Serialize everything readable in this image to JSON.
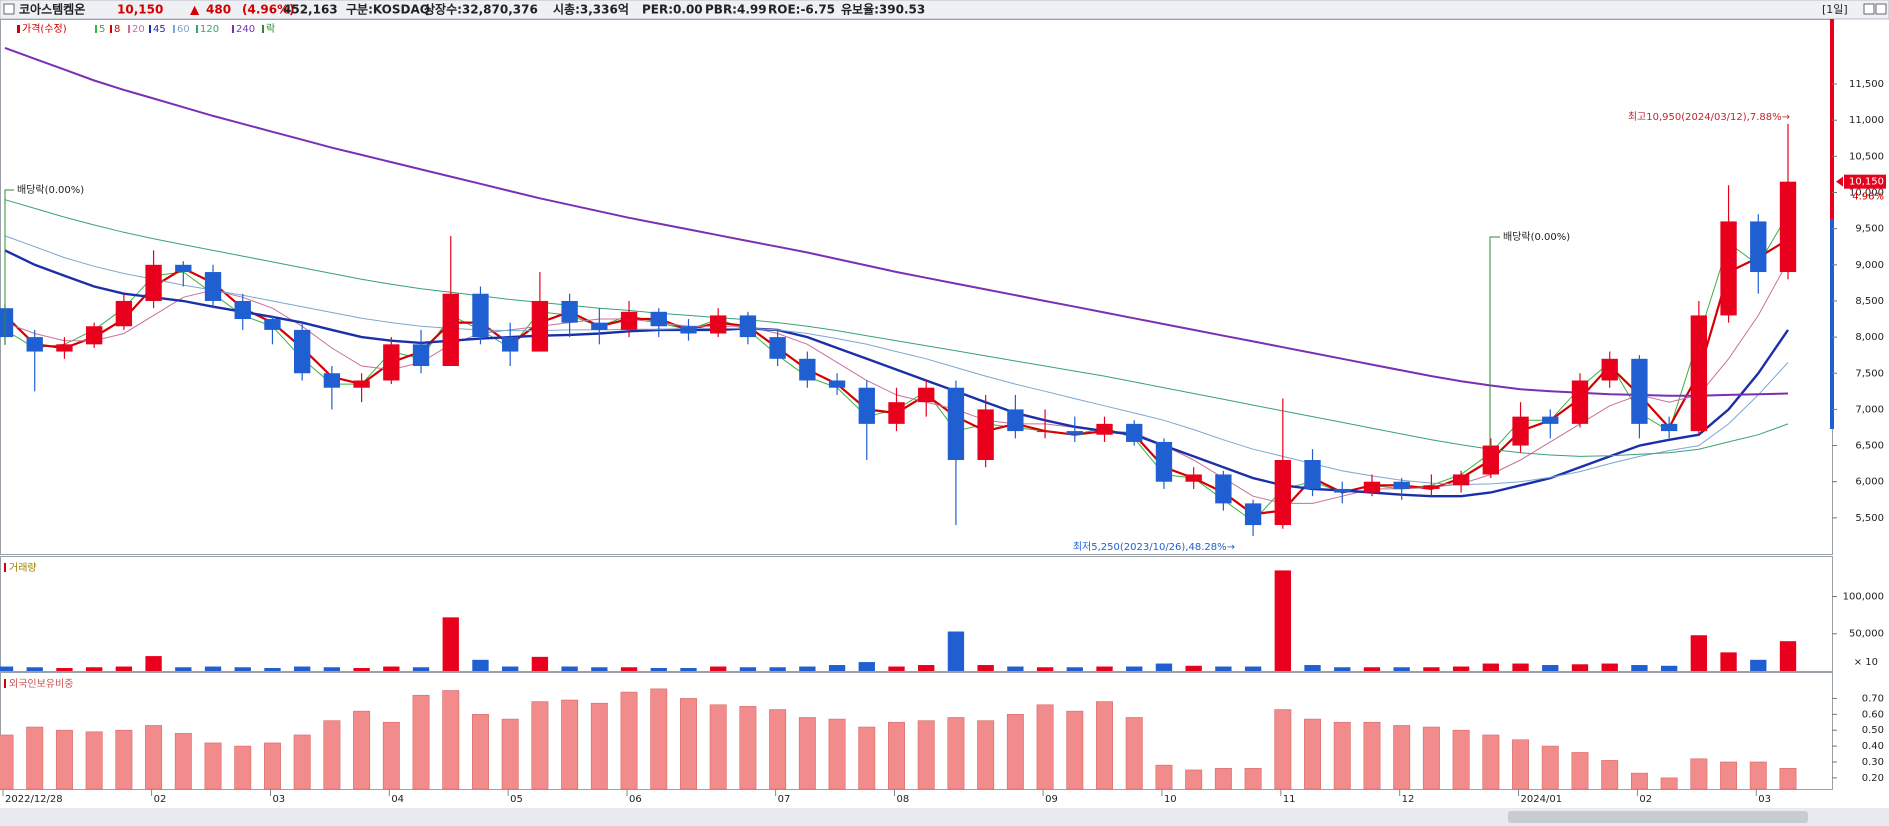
{
  "header": {
    "name": "코아스템켐온",
    "price": "10,150",
    "arrow": "▲",
    "change": "480",
    "change_pct": "(4.96%)",
    "volume": "452,163",
    "market": "구분:KOSDAQ",
    "shares": "상장수:32,870,376",
    "cap": "시총:3,336억",
    "per": "PER:0.00",
    "pbr": "PBR:4.99",
    "roe": "ROE:-6.75",
    "reserve": "유보율:390.53",
    "period": "[1일]"
  },
  "chart_data": [
    {
      "type": "candlestick",
      "legend_title": "가격(수정)",
      "up_color": "#e8001c",
      "down_color": "#1f5fd1",
      "categories": [
        "2022/12/28",
        null,
        null,
        null,
        null,
        "02",
        null,
        null,
        null,
        "03",
        null,
        null,
        null,
        "04",
        null,
        null,
        null,
        "05",
        null,
        null,
        null,
        "06",
        null,
        null,
        null,
        null,
        "07",
        null,
        null,
        null,
        "08",
        null,
        null,
        null,
        null,
        "09",
        null,
        null,
        null,
        "10",
        null,
        null,
        null,
        "11",
        null,
        null,
        null,
        "12",
        null,
        null,
        null,
        "2024/01",
        null,
        null,
        null,
        "02",
        null,
        null,
        null,
        "03",
        null
      ],
      "open": [
        8400,
        8000,
        7800,
        7900,
        8150,
        8500,
        9000,
        8900,
        8500,
        8250,
        8100,
        7500,
        7300,
        7400,
        7900,
        7600,
        8600,
        8000,
        7800,
        8500,
        8200,
        8100,
        8350,
        8150,
        8050,
        8300,
        8000,
        7700,
        7400,
        7300,
        6800,
        7100,
        7300,
        6300,
        7000,
        6700,
        6700,
        6650,
        6800,
        6550,
        6000,
        6100,
        5700,
        5400,
        6300,
        5900,
        5850,
        6000,
        5900,
        5950,
        6100,
        6500,
        6900,
        6800,
        7400,
        7700,
        6800,
        6700,
        8300,
        9600,
        8900
      ],
      "high": [
        8450,
        8100,
        8000,
        8200,
        8600,
        9200,
        9050,
        9000,
        8600,
        8300,
        8200,
        7600,
        7500,
        8000,
        8100,
        9400,
        8700,
        8200,
        8900,
        8600,
        8400,
        8500,
        8400,
        8250,
        8400,
        8350,
        8100,
        7800,
        7500,
        7400,
        7300,
        7400,
        7400,
        7200,
        7200,
        7000,
        6900,
        6900,
        6850,
        6600,
        6200,
        6150,
        5750,
        7150,
        6450,
        6000,
        6100,
        6050,
        6100,
        6150,
        6600,
        7100,
        7000,
        7500,
        7800,
        7750,
        6900,
        8500,
        10100,
        9700,
        10950
      ],
      "low": [
        7900,
        7250,
        7700,
        7850,
        8100,
        8400,
        8700,
        8400,
        8100,
        7900,
        7400,
        7000,
        7100,
        7350,
        7500,
        7600,
        7900,
        7600,
        7800,
        8000,
        7900,
        8000,
        8000,
        7950,
        8000,
        7900,
        7600,
        7300,
        7200,
        6300,
        6700,
        6900,
        5400,
        6200,
        6600,
        6600,
        6550,
        6550,
        6500,
        5900,
        5900,
        5600,
        5250,
        5350,
        5800,
        5700,
        5800,
        5750,
        5800,
        5850,
        6050,
        6400,
        6600,
        6750,
        7300,
        6600,
        6600,
        6650,
        8200,
        8600,
        8800
      ],
      "close": [
        8000,
        7800,
        7900,
        8150,
        8500,
        9000,
        8900,
        8500,
        8250,
        8100,
        7500,
        7300,
        7400,
        7900,
        7600,
        8600,
        8000,
        7800,
        8500,
        8200,
        8100,
        8350,
        8150,
        8050,
        8300,
        8000,
        7700,
        7400,
        7300,
        6800,
        7100,
        7300,
        6300,
        7000,
        6700,
        6700,
        6650,
        6800,
        6550,
        6000,
        6100,
        5700,
        5400,
        6300,
        5900,
        5850,
        6000,
        5900,
        5950,
        6100,
        6500,
        6900,
        6800,
        7400,
        7700,
        6800,
        6700,
        8300,
        9600,
        8900,
        10150
      ],
      "series": [
        {
          "name": "5",
          "color": "#3cb043",
          "values": [
            8100,
            7850,
            7900,
            8100,
            8400,
            8850,
            8900,
            8600,
            8300,
            8150,
            7700,
            7350,
            7350,
            7800,
            7700,
            8300,
            8100,
            7850,
            8350,
            8300,
            8150,
            8300,
            8200,
            8100,
            8250,
            8100,
            7750,
            7450,
            7300,
            6900,
            7000,
            7250,
            6700,
            6800,
            6750,
            6700,
            6650,
            6750,
            6600,
            6100,
            6050,
            5750,
            5450,
            5900,
            6000,
            5850,
            5950,
            5900,
            5950,
            6100,
            6400,
            6850,
            6850,
            7300,
            7650,
            6950,
            6700,
            8000,
            9300,
            9000,
            9700
          ]
        },
        {
          "name": "8",
          "color": "#d40000",
          "values": [
            8300,
            7900,
            7850,
            8000,
            8250,
            8700,
            8950,
            8750,
            8400,
            8200,
            7850,
            7450,
            7350,
            7650,
            7800,
            8200,
            8200,
            7900,
            8200,
            8350,
            8150,
            8250,
            8250,
            8100,
            8200,
            8150,
            7850,
            7550,
            7350,
            7000,
            6950,
            7200,
            6900,
            6700,
            6800,
            6700,
            6650,
            6700,
            6650,
            6200,
            6050,
            5850,
            5550,
            5600,
            6050,
            5850,
            5950,
            5950,
            5900,
            6050,
            6300,
            6700,
            6850,
            7150,
            7600,
            7200,
            6750,
            7500,
            8900,
            9100,
            9350
          ]
        },
        {
          "name": "20",
          "color": "#c8709a",
          "values": [
            8200,
            8050,
            7950,
            7950,
            8050,
            8300,
            8550,
            8650,
            8550,
            8400,
            8150,
            7850,
            7600,
            7550,
            7650,
            7900,
            8050,
            8100,
            8150,
            8200,
            8250,
            8250,
            8200,
            8150,
            8150,
            8150,
            8050,
            7900,
            7650,
            7400,
            7200,
            7100,
            7000,
            6850,
            6800,
            6800,
            6750,
            6700,
            6680,
            6500,
            6300,
            6050,
            5800,
            5700,
            5700,
            5800,
            5900,
            5900,
            5920,
            5970,
            6100,
            6300,
            6550,
            6800,
            7050,
            7200,
            7100,
            7200,
            7700,
            8300,
            9050
          ]
        },
        {
          "name": "45",
          "color": "#1a2fa8",
          "values": [
            9200,
            9000,
            8850,
            8700,
            8600,
            8550,
            8500,
            8420,
            8350,
            8280,
            8200,
            8100,
            8000,
            7950,
            7920,
            7950,
            7980,
            8000,
            8020,
            8030,
            8050,
            8080,
            8100,
            8100,
            8100,
            8120,
            8100,
            8000,
            7850,
            7700,
            7550,
            7400,
            7250,
            7100,
            6950,
            6850,
            6760,
            6700,
            6650,
            6500,
            6350,
            6200,
            6050,
            5950,
            5900,
            5880,
            5850,
            5820,
            5800,
            5800,
            5850,
            5950,
            6050,
            6200,
            6350,
            6500,
            6580,
            6650,
            7000,
            7500,
            8100
          ]
        },
        {
          "name": "60",
          "color": "#7da7cf",
          "values": [
            9400,
            9250,
            9100,
            8980,
            8880,
            8800,
            8720,
            8650,
            8580,
            8500,
            8420,
            8340,
            8260,
            8200,
            8150,
            8120,
            8100,
            8090,
            8090,
            8100,
            8100,
            8110,
            8110,
            8120,
            8120,
            8120,
            8100,
            8050,
            7980,
            7900,
            7800,
            7700,
            7580,
            7460,
            7350,
            7250,
            7150,
            7050,
            6950,
            6850,
            6720,
            6580,
            6450,
            6350,
            6250,
            6150,
            6080,
            6020,
            5980,
            5960,
            5970,
            6000,
            6060,
            6140,
            6250,
            6350,
            6430,
            6500,
            6800,
            7200,
            7650
          ]
        },
        {
          "name": "120",
          "color": "#3aa07a",
          "values": [
            9900,
            9780,
            9660,
            9550,
            9450,
            9360,
            9280,
            9200,
            9120,
            9040,
            8960,
            8880,
            8800,
            8730,
            8670,
            8620,
            8570,
            8520,
            8480,
            8440,
            8400,
            8370,
            8330,
            8300,
            8270,
            8240,
            8200,
            8150,
            8090,
            8020,
            7950,
            7880,
            7810,
            7740,
            7670,
            7600,
            7530,
            7460,
            7380,
            7300,
            7220,
            7140,
            7060,
            6980,
            6900,
            6820,
            6740,
            6660,
            6580,
            6510,
            6450,
            6400,
            6370,
            6350,
            6360,
            6380,
            6400,
            6450,
            6550,
            6650,
            6800
          ]
        },
        {
          "name": "240",
          "color": "#7a2fb5",
          "values": [
            12000,
            11850,
            11700,
            11550,
            11420,
            11300,
            11180,
            11060,
            10950,
            10840,
            10730,
            10620,
            10520,
            10420,
            10320,
            10220,
            10120,
            10020,
            9920,
            9830,
            9740,
            9650,
            9570,
            9490,
            9410,
            9330,
            9250,
            9170,
            9080,
            8990,
            8900,
            8820,
            8740,
            8660,
            8580,
            8500,
            8420,
            8340,
            8260,
            8180,
            8100,
            8020,
            7940,
            7860,
            7780,
            7700,
            7620,
            7540,
            7460,
            7390,
            7330,
            7280,
            7250,
            7230,
            7210,
            7200,
            7190,
            7190,
            7200,
            7210,
            7220
          ]
        }
      ],
      "ex_dividend": {
        "legend": "락",
        "color": "#2e8b2e",
        "labels": [
          "배당락(0.00%)",
          "배당락(0.00%)"
        ]
      },
      "annotations": [
        "최고10,950(2024/03/12),7.88%→",
        "최저5,250(2023/10/26),48.28%→"
      ],
      "last_price": {
        "value": 10150,
        "label": "10,150"
      },
      "last_change": "4.96%",
      "ylim": [
        5000,
        12400
      ],
      "yticks": [
        {
          "value": 5500,
          "label": "5,500"
        },
        {
          "value": 6000,
          "label": "6,000"
        },
        {
          "value": 6500,
          "label": "6,500"
        },
        {
          "value": 7000,
          "label": "7,000"
        },
        {
          "value": 7500,
          "label": "7,500"
        },
        {
          "value": 8000,
          "label": "8,000"
        },
        {
          "value": 8500,
          "label": "8,500"
        },
        {
          "value": 9000,
          "label": "9,000"
        },
        {
          "value": 9500,
          "label": "9,500"
        },
        {
          "value": 10000,
          "label": "10,000"
        },
        {
          "value": 10500,
          "label": "10,500"
        },
        {
          "value": 11000,
          "label": "11,000"
        },
        {
          "value": 11500,
          "label": "11,500"
        }
      ]
    },
    {
      "type": "bar",
      "title": "거래량",
      "unit_label": "× 10",
      "values": [
        6000,
        5000,
        4000,
        5000,
        6000,
        20000,
        5000,
        6000,
        5000,
        4000,
        6000,
        5000,
        4000,
        6000,
        5000,
        72000,
        15000,
        6000,
        19000,
        6000,
        5000,
        5000,
        4000,
        4000,
        6000,
        5000,
        5000,
        6000,
        8000,
        12000,
        6000,
        8000,
        53000,
        8000,
        6000,
        5000,
        5000,
        6000,
        6000,
        10000,
        7000,
        6000,
        6000,
        135000,
        8000,
        5000,
        5000,
        5000,
        5000,
        6000,
        10000,
        10000,
        8000,
        9000,
        10000,
        8000,
        7000,
        48000,
        25000,
        15000,
        40000
      ],
      "ylim": [
        0,
        153000
      ],
      "yticks": [
        {
          "value": 50000,
          "label": "50,000"
        },
        {
          "value": 100000,
          "label": "100,000"
        }
      ]
    },
    {
      "type": "bar",
      "title": "외국인보유비중",
      "color": "#f28b8b",
      "values": [
        0.47,
        0.52,
        0.5,
        0.49,
        0.5,
        0.53,
        0.48,
        0.42,
        0.4,
        0.42,
        0.47,
        0.56,
        0.62,
        0.55,
        0.72,
        0.75,
        0.6,
        0.57,
        0.68,
        0.69,
        0.67,
        0.74,
        0.76,
        0.7,
        0.66,
        0.65,
        0.63,
        0.58,
        0.57,
        0.52,
        0.55,
        0.56,
        0.58,
        0.56,
        0.6,
        0.66,
        0.62,
        0.68,
        0.58,
        0.28,
        0.25,
        0.26,
        0.26,
        0.63,
        0.57,
        0.55,
        0.55,
        0.53,
        0.52,
        0.5,
        0.47,
        0.44,
        0.4,
        0.36,
        0.31,
        0.23,
        0.2,
        0.32,
        0.3,
        0.3,
        0.26
      ],
      "ylim": [
        0.13,
        0.86
      ],
      "yticks": [
        {
          "value": 0.2,
          "label": "0.20"
        },
        {
          "value": 0.3,
          "label": "0.30"
        },
        {
          "value": 0.4,
          "label": "0.40"
        },
        {
          "value": 0.5,
          "label": "0.50"
        },
        {
          "value": 0.6,
          "label": "0.60"
        },
        {
          "value": 0.7,
          "label": "0.70"
        }
      ]
    }
  ]
}
